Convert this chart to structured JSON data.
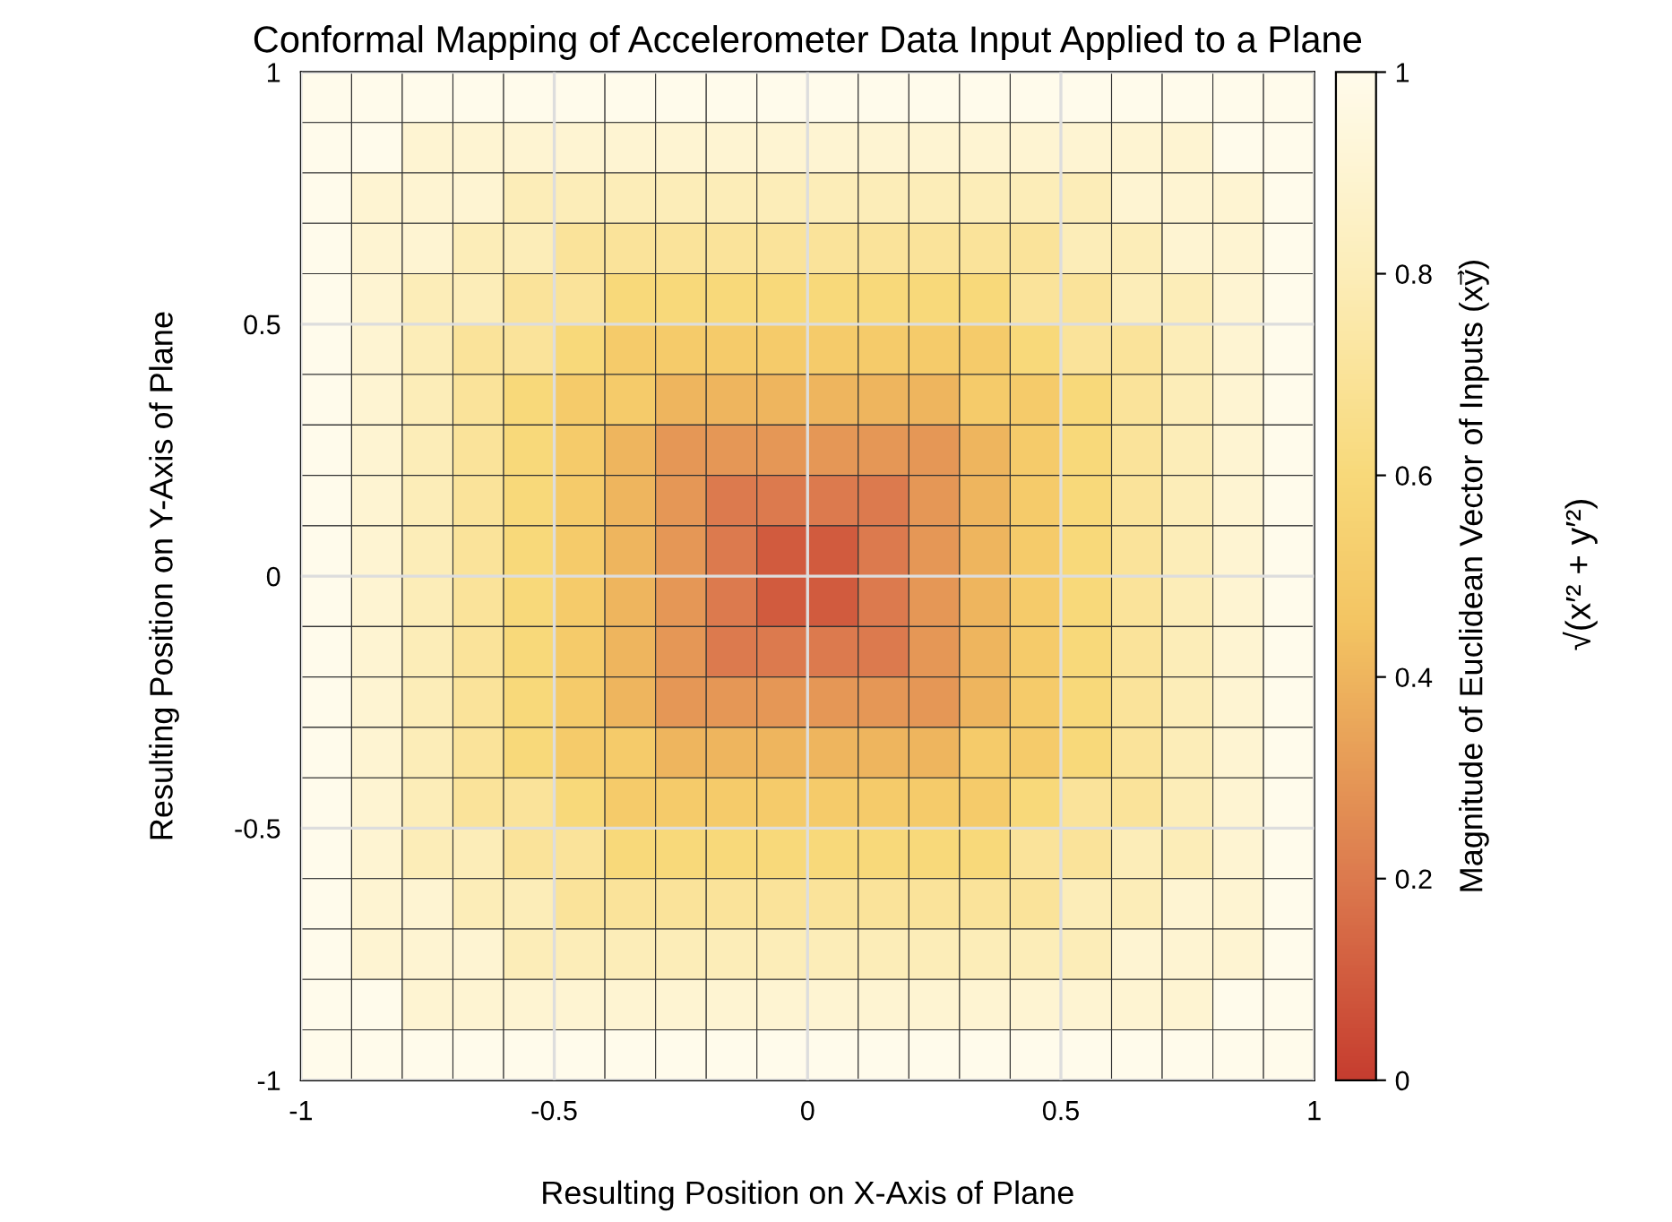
{
  "chart_data": {
    "type": "heatmap",
    "title": "Conformal Mapping of Accelerometer Data Input Applied to a Plane",
    "xlabel": "Resulting Position on X-Axis of Plane",
    "ylabel": "Resulting Position on Y-Axis of Plane",
    "clabel": "Magnitude of Euclidean Vector of Inputs (xy⃗)",
    "annotations": [
      "√(x′² + y′²)"
    ],
    "x": [
      -0.95,
      -0.85,
      -0.75,
      -0.65,
      -0.55,
      -0.45,
      -0.35,
      -0.25,
      -0.15,
      -0.05,
      0.05,
      0.15,
      0.25,
      0.35,
      0.45,
      0.55,
      0.65,
      0.75,
      0.85,
      0.95
    ],
    "y": [
      0.95,
      0.85,
      0.75,
      0.65,
      0.55,
      0.45,
      0.35,
      0.25,
      0.15,
      0.05,
      -0.05,
      -0.15,
      -0.25,
      -0.35,
      -0.45,
      -0.55,
      -0.65,
      -0.75,
      -0.85,
      -0.95
    ],
    "xlim": [
      -1,
      1
    ],
    "ylim": [
      -1,
      1
    ],
    "xticks": [
      -1,
      -0.5,
      0,
      0.5,
      1
    ],
    "yticks": [
      -1,
      -0.5,
      0,
      0.5,
      1
    ],
    "clim": [
      0,
      1
    ],
    "cticks": [
      0,
      0.2,
      0.4,
      0.6,
      0.8,
      1
    ],
    "grid": true,
    "cells": [
      [
        1.0,
        1.0,
        1.0,
        1.0,
        1.0,
        1.0,
        1.0,
        1.0,
        1.0,
        1.0,
        1.0,
        1.0,
        1.0,
        1.0,
        1.0,
        1.0,
        1.0,
        1.0,
        1.0,
        1.0
      ],
      [
        1.0,
        1.0,
        0.9,
        0.9,
        0.9,
        0.9,
        0.9,
        0.9,
        0.9,
        0.9,
        0.9,
        0.9,
        0.9,
        0.9,
        0.9,
        0.9,
        0.9,
        0.9,
        1.0,
        1.0
      ],
      [
        1.0,
        0.9,
        0.9,
        0.9,
        0.8,
        0.8,
        0.8,
        0.8,
        0.8,
        0.8,
        0.8,
        0.8,
        0.8,
        0.8,
        0.8,
        0.8,
        0.9,
        0.9,
        0.9,
        1.0
      ],
      [
        1.0,
        0.9,
        0.9,
        0.8,
        0.8,
        0.7,
        0.7,
        0.7,
        0.7,
        0.7,
        0.7,
        0.7,
        0.7,
        0.7,
        0.7,
        0.8,
        0.8,
        0.9,
        0.9,
        1.0
      ],
      [
        1.0,
        0.9,
        0.8,
        0.8,
        0.7,
        0.7,
        0.6,
        0.6,
        0.6,
        0.6,
        0.6,
        0.6,
        0.6,
        0.6,
        0.7,
        0.7,
        0.8,
        0.8,
        0.9,
        1.0
      ],
      [
        1.0,
        0.9,
        0.8,
        0.7,
        0.7,
        0.6,
        0.5,
        0.5,
        0.5,
        0.5,
        0.5,
        0.5,
        0.5,
        0.5,
        0.6,
        0.7,
        0.7,
        0.8,
        0.9,
        1.0
      ],
      [
        1.0,
        0.9,
        0.8,
        0.7,
        0.6,
        0.5,
        0.5,
        0.4,
        0.4,
        0.4,
        0.4,
        0.4,
        0.4,
        0.5,
        0.5,
        0.6,
        0.7,
        0.8,
        0.9,
        1.0
      ],
      [
        1.0,
        0.9,
        0.8,
        0.7,
        0.6,
        0.5,
        0.4,
        0.3,
        0.3,
        0.3,
        0.3,
        0.3,
        0.3,
        0.4,
        0.5,
        0.6,
        0.7,
        0.8,
        0.9,
        1.0
      ],
      [
        1.0,
        0.9,
        0.8,
        0.7,
        0.6,
        0.5,
        0.4,
        0.3,
        0.2,
        0.2,
        0.2,
        0.2,
        0.3,
        0.4,
        0.5,
        0.6,
        0.7,
        0.8,
        0.9,
        1.0
      ],
      [
        1.0,
        0.9,
        0.8,
        0.7,
        0.6,
        0.5,
        0.4,
        0.3,
        0.2,
        0.1,
        0.1,
        0.2,
        0.3,
        0.4,
        0.5,
        0.6,
        0.7,
        0.8,
        0.9,
        1.0
      ],
      [
        1.0,
        0.9,
        0.8,
        0.7,
        0.6,
        0.5,
        0.4,
        0.3,
        0.2,
        0.1,
        0.1,
        0.2,
        0.3,
        0.4,
        0.5,
        0.6,
        0.7,
        0.8,
        0.9,
        1.0
      ],
      [
        1.0,
        0.9,
        0.8,
        0.7,
        0.6,
        0.5,
        0.4,
        0.3,
        0.2,
        0.2,
        0.2,
        0.2,
        0.3,
        0.4,
        0.5,
        0.6,
        0.7,
        0.8,
        0.9,
        1.0
      ],
      [
        1.0,
        0.9,
        0.8,
        0.7,
        0.6,
        0.5,
        0.4,
        0.3,
        0.3,
        0.3,
        0.3,
        0.3,
        0.3,
        0.4,
        0.5,
        0.6,
        0.7,
        0.8,
        0.9,
        1.0
      ],
      [
        1.0,
        0.9,
        0.8,
        0.7,
        0.6,
        0.5,
        0.5,
        0.4,
        0.4,
        0.4,
        0.4,
        0.4,
        0.4,
        0.5,
        0.5,
        0.6,
        0.7,
        0.8,
        0.9,
        1.0
      ],
      [
        1.0,
        0.9,
        0.8,
        0.7,
        0.7,
        0.6,
        0.5,
        0.5,
        0.5,
        0.5,
        0.5,
        0.5,
        0.5,
        0.5,
        0.6,
        0.7,
        0.7,
        0.8,
        0.9,
        1.0
      ],
      [
        1.0,
        0.9,
        0.8,
        0.8,
        0.7,
        0.7,
        0.6,
        0.6,
        0.6,
        0.6,
        0.6,
        0.6,
        0.6,
        0.6,
        0.7,
        0.7,
        0.8,
        0.8,
        0.9,
        1.0
      ],
      [
        1.0,
        0.9,
        0.9,
        0.8,
        0.8,
        0.7,
        0.7,
        0.7,
        0.7,
        0.7,
        0.7,
        0.7,
        0.7,
        0.7,
        0.7,
        0.8,
        0.8,
        0.9,
        0.9,
        1.0
      ],
      [
        1.0,
        0.9,
        0.9,
        0.9,
        0.8,
        0.8,
        0.8,
        0.8,
        0.8,
        0.8,
        0.8,
        0.8,
        0.8,
        0.8,
        0.8,
        0.8,
        0.9,
        0.9,
        0.9,
        1.0
      ],
      [
        1.0,
        1.0,
        0.9,
        0.9,
        0.9,
        0.9,
        0.9,
        0.9,
        0.9,
        0.9,
        0.9,
        0.9,
        0.9,
        0.9,
        0.9,
        0.9,
        0.9,
        0.9,
        1.0,
        1.0
      ],
      [
        1.0,
        1.0,
        1.0,
        1.0,
        1.0,
        1.0,
        1.0,
        1.0,
        1.0,
        1.0,
        1.0,
        1.0,
        1.0,
        1.0,
        1.0,
        1.0,
        1.0,
        1.0,
        1.0,
        1.0
      ]
    ]
  }
}
